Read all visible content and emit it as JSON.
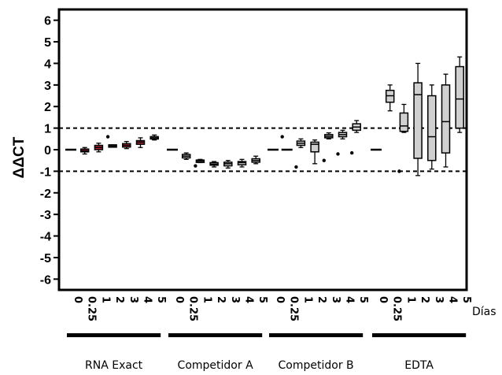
{
  "chart_data": {
    "type": "box",
    "ylabel": "ΔΔCT",
    "xunit_label": "Días",
    "ylim": [
      -6.5,
      6.5
    ],
    "yticks": [
      -6,
      -5,
      -4,
      -3,
      -2,
      -1,
      0,
      1,
      2,
      3,
      4,
      5,
      6
    ],
    "reference_lines": [
      1,
      -1
    ],
    "day_labels": [
      "0",
      "0.25",
      "1",
      "2",
      "3",
      "4",
      "5"
    ],
    "groups": [
      {
        "name": "RNA Exact",
        "boxes": [
          {
            "day": "0",
            "min": 0.0,
            "q1": 0.0,
            "median": 0.0,
            "q3": 0.0,
            "max": 0.0,
            "outliers": [],
            "color": "#000000"
          },
          {
            "day": "0.25",
            "min": -0.2,
            "q1": -0.1,
            "median": -0.05,
            "q3": 0.03,
            "max": 0.1,
            "outliers": [],
            "color": "#b0283a"
          },
          {
            "day": "1",
            "min": -0.1,
            "q1": 0.0,
            "median": 0.1,
            "q3": 0.2,
            "max": 0.3,
            "outliers": [],
            "color": "#b0283a"
          },
          {
            "day": "2",
            "min": 0.13,
            "q1": 0.15,
            "median": 0.17,
            "q3": 0.19,
            "max": 0.22,
            "outliers": [
              0.6
            ],
            "color": "#d0d0d0"
          },
          {
            "day": "3",
            "min": 0.05,
            "q1": 0.12,
            "median": 0.2,
            "q3": 0.28,
            "max": 0.38,
            "outliers": [],
            "color": "#b0283a"
          },
          {
            "day": "4",
            "min": 0.1,
            "q1": 0.25,
            "median": 0.35,
            "q3": 0.42,
            "max": 0.55,
            "outliers": [],
            "color": "#b0283a"
          },
          {
            "day": "5",
            "min": 0.45,
            "q1": 0.5,
            "median": 0.55,
            "q3": 0.6,
            "max": 0.68,
            "outliers": [],
            "color": "#d0d0d0"
          }
        ]
      },
      {
        "name": "Competidor A",
        "boxes": [
          {
            "day": "0",
            "min": 0.0,
            "q1": 0.0,
            "median": 0.0,
            "q3": 0.0,
            "max": 0.0,
            "outliers": [],
            "color": "#000000"
          },
          {
            "day": "0.25",
            "min": -0.45,
            "q1": -0.38,
            "median": -0.3,
            "q3": -0.22,
            "max": -0.15,
            "outliers": [],
            "color": "#d0d0d0"
          },
          {
            "day": "1",
            "min": -0.6,
            "q1": -0.57,
            "median": -0.53,
            "q3": -0.5,
            "max": -0.45,
            "outliers": [
              -0.75
            ],
            "color": "#d0d0d0"
          },
          {
            "day": "2",
            "min": -0.8,
            "q1": -0.72,
            "median": -0.67,
            "q3": -0.6,
            "max": -0.55,
            "outliers": [],
            "color": "#d0d0d0"
          },
          {
            "day": "3",
            "min": -0.85,
            "q1": -0.75,
            "median": -0.65,
            "q3": -0.58,
            "max": -0.5,
            "outliers": [],
            "color": "#d0d0d0"
          },
          {
            "day": "4",
            "min": -0.8,
            "q1": -0.7,
            "median": -0.6,
            "q3": -0.55,
            "max": -0.45,
            "outliers": [],
            "color": "#d0d0d0"
          },
          {
            "day": "5",
            "min": -0.65,
            "q1": -0.58,
            "median": -0.5,
            "q3": -0.42,
            "max": -0.3,
            "outliers": [],
            "color": "#d0d0d0"
          }
        ]
      },
      {
        "name": "Competidor B",
        "boxes": [
          {
            "day": "0",
            "min": 0.0,
            "q1": 0.0,
            "median": 0.0,
            "q3": 0.0,
            "max": 0.0,
            "outliers": [],
            "color": "#000000"
          },
          {
            "day": "0.25",
            "min": 0.0,
            "q1": 0.0,
            "median": 0.0,
            "q3": 0.0,
            "max": 0.0,
            "outliers": [
              0.6
            ],
            "color": "#000000"
          },
          {
            "day": "1",
            "min": 0.1,
            "q1": 0.2,
            "median": 0.3,
            "q3": 0.4,
            "max": 0.5,
            "outliers": [
              -0.8
            ],
            "color": "#d0d0d0"
          },
          {
            "day": "2",
            "min": -0.65,
            "q1": -0.1,
            "median": 0.25,
            "q3": 0.35,
            "max": 0.45,
            "outliers": [],
            "color": "#d0d0d0"
          },
          {
            "day": "3",
            "min": 0.5,
            "q1": 0.55,
            "median": 0.62,
            "q3": 0.7,
            "max": 0.78,
            "outliers": [
              -0.5
            ],
            "color": "#d0d0d0"
          },
          {
            "day": "4",
            "min": 0.5,
            "q1": 0.6,
            "median": 0.7,
            "q3": 0.8,
            "max": 0.9,
            "outliers": [
              -0.2
            ],
            "color": "#d0d0d0"
          },
          {
            "day": "5",
            "min": 0.8,
            "q1": 0.9,
            "median": 1.05,
            "q3": 1.2,
            "max": 1.35,
            "outliers": [
              -0.15
            ],
            "color": "#d0d0d0"
          }
        ]
      },
      {
        "name": "EDTA",
        "boxes": [
          {
            "day": "0",
            "min": 0.0,
            "q1": 0.0,
            "median": 0.0,
            "q3": 0.0,
            "max": 0.0,
            "outliers": [],
            "color": "#000000"
          },
          {
            "day": "0.25",
            "min": 1.8,
            "q1": 2.2,
            "median": 2.5,
            "q3": 2.75,
            "max": 3.0,
            "outliers": [],
            "color": "#d0d0d0"
          },
          {
            "day": "1",
            "min": 0.8,
            "q1": 0.85,
            "median": 1.1,
            "q3": 1.7,
            "max": 2.1,
            "outliers": [
              -1.0
            ],
            "color": "#d0d0d0"
          },
          {
            "day": "2",
            "min": -1.2,
            "q1": -0.4,
            "median": 2.55,
            "q3": 3.1,
            "max": 4.0,
            "outliers": [],
            "color": "#d0d0d0"
          },
          {
            "day": "3",
            "min": -0.9,
            "q1": -0.5,
            "median": 0.6,
            "q3": 2.5,
            "max": 3.0,
            "outliers": [],
            "color": "#d0d0d0"
          },
          {
            "day": "4",
            "min": -0.8,
            "q1": -0.15,
            "median": 1.3,
            "q3": 3.0,
            "max": 3.5,
            "outliers": [],
            "color": "#d0d0d0"
          },
          {
            "day": "5",
            "min": 0.8,
            "q1": 1.0,
            "median": 2.35,
            "q3": 3.85,
            "max": 4.3,
            "outliers": [],
            "color": "#d0d0d0"
          }
        ]
      }
    ]
  }
}
